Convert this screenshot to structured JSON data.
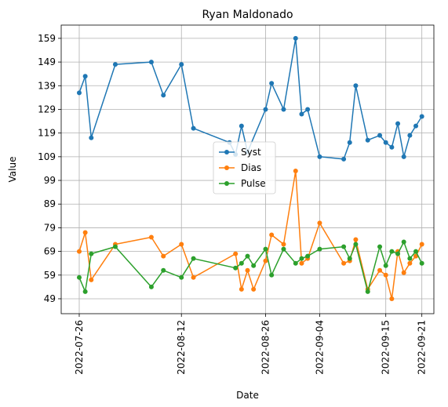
{
  "chart_data": {
    "type": "line",
    "title": "Ryan Maldonado",
    "xlabel": "Date",
    "ylabel": "Value",
    "x_type": "date",
    "xlim": [
      "2022-07-23",
      "2022-09-23"
    ],
    "ylim": [
      42.7,
      164.6
    ],
    "xticks": [
      "2022-07-26",
      "2022-08-12",
      "2022-08-26",
      "2022-09-04",
      "2022-09-15",
      "2022-09-21"
    ],
    "yticks": [
      49,
      59,
      69,
      79,
      89,
      99,
      109,
      119,
      129,
      139,
      149,
      159
    ],
    "grid": true,
    "legend_position": "center",
    "series": [
      {
        "name": "Syst",
        "color": "#1f77b4",
        "points": [
          [
            "2022-07-26",
            136
          ],
          [
            "2022-07-27",
            143
          ],
          [
            "2022-07-28",
            117
          ],
          [
            "2022-08-01",
            148
          ],
          [
            "2022-08-07",
            149
          ],
          [
            "2022-08-09",
            135
          ],
          [
            "2022-08-12",
            148
          ],
          [
            "2022-08-14",
            121
          ],
          [
            "2022-08-20",
            115
          ],
          [
            "2022-08-21",
            110
          ],
          [
            "2022-08-22",
            122
          ],
          [
            "2022-08-23",
            111
          ],
          [
            "2022-08-26",
            129
          ],
          [
            "2022-08-27",
            140
          ],
          [
            "2022-08-29",
            129
          ],
          [
            "2022-08-31",
            159
          ],
          [
            "2022-09-01",
            127
          ],
          [
            "2022-09-02",
            129
          ],
          [
            "2022-09-04",
            109
          ],
          [
            "2022-09-08",
            108
          ],
          [
            "2022-09-09",
            115
          ],
          [
            "2022-09-10",
            139
          ],
          [
            "2022-09-12",
            116
          ],
          [
            "2022-09-14",
            118
          ],
          [
            "2022-09-15",
            115
          ],
          [
            "2022-09-16",
            113
          ],
          [
            "2022-09-17",
            123
          ],
          [
            "2022-09-18",
            109
          ],
          [
            "2022-09-19",
            118
          ],
          [
            "2022-09-20",
            122
          ],
          [
            "2022-09-21",
            126
          ]
        ]
      },
      {
        "name": "Dias",
        "color": "#ff7f0e",
        "points": [
          [
            "2022-07-26",
            69
          ],
          [
            "2022-07-27",
            77
          ],
          [
            "2022-07-28",
            57
          ],
          [
            "2022-08-01",
            72
          ],
          [
            "2022-08-07",
            75
          ],
          [
            "2022-08-09",
            67
          ],
          [
            "2022-08-12",
            72
          ],
          [
            "2022-08-14",
            58
          ],
          [
            "2022-08-21",
            68
          ],
          [
            "2022-08-22",
            53
          ],
          [
            "2022-08-23",
            61
          ],
          [
            "2022-08-24",
            53
          ],
          [
            "2022-08-26",
            65
          ],
          [
            "2022-08-27",
            76
          ],
          [
            "2022-08-29",
            72
          ],
          [
            "2022-08-31",
            103
          ],
          [
            "2022-09-01",
            64
          ],
          [
            "2022-09-02",
            66
          ],
          [
            "2022-09-04",
            81
          ],
          [
            "2022-09-08",
            64
          ],
          [
            "2022-09-09",
            65
          ],
          [
            "2022-09-10",
            74
          ],
          [
            "2022-09-12",
            53
          ],
          [
            "2022-09-14",
            61
          ],
          [
            "2022-09-15",
            59
          ],
          [
            "2022-09-16",
            49
          ],
          [
            "2022-09-17",
            69
          ],
          [
            "2022-09-18",
            60
          ],
          [
            "2022-09-19",
            64
          ],
          [
            "2022-09-20",
            67
          ],
          [
            "2022-09-21",
            72
          ]
        ]
      },
      {
        "name": "Pulse",
        "color": "#2ca02c",
        "points": [
          [
            "2022-07-26",
            58
          ],
          [
            "2022-07-27",
            52
          ],
          [
            "2022-07-28",
            68
          ],
          [
            "2022-08-01",
            71
          ],
          [
            "2022-08-07",
            54
          ],
          [
            "2022-08-09",
            61
          ],
          [
            "2022-08-12",
            58
          ],
          [
            "2022-08-14",
            66
          ],
          [
            "2022-08-21",
            62
          ],
          [
            "2022-08-22",
            64
          ],
          [
            "2022-08-23",
            67
          ],
          [
            "2022-08-24",
            63
          ],
          [
            "2022-08-26",
            70
          ],
          [
            "2022-08-27",
            59
          ],
          [
            "2022-08-29",
            70
          ],
          [
            "2022-08-31",
            64
          ],
          [
            "2022-09-01",
            66
          ],
          [
            "2022-09-02",
            67
          ],
          [
            "2022-09-04",
            70
          ],
          [
            "2022-09-08",
            71
          ],
          [
            "2022-09-09",
            66
          ],
          [
            "2022-09-10",
            72
          ],
          [
            "2022-09-12",
            52
          ],
          [
            "2022-09-14",
            71
          ],
          [
            "2022-09-15",
            63
          ],
          [
            "2022-09-16",
            69
          ],
          [
            "2022-09-17",
            68
          ],
          [
            "2022-09-18",
            73
          ],
          [
            "2022-09-19",
            66
          ],
          [
            "2022-09-20",
            69
          ],
          [
            "2022-09-21",
            64
          ]
        ]
      }
    ]
  }
}
